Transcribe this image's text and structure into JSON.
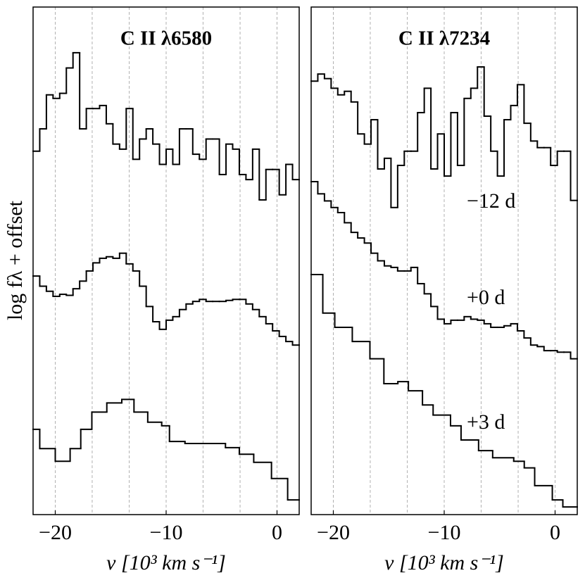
{
  "chart_data": [
    {
      "type": "step",
      "title": "C II λ6580",
      "xlabel": "v [10³ km s⁻¹]",
      "ylabel": "log fλ + offset",
      "xlim": [
        -22,
        2
      ],
      "ylim": [
        0,
        100
      ],
      "xticks": [
        {
          "value": -20,
          "label": "−20"
        },
        {
          "value": -10,
          "label": "−10"
        },
        0
      ],
      "xgrid": [
        -20,
        -16.67,
        -13.33,
        -10,
        -6.67,
        -3.33,
        0
      ],
      "series": [
        {
          "color": "#000000",
          "bins": [
            -22,
            -21.4,
            -20.8,
            -20.2,
            -19.6,
            -19,
            -18.4,
            -17.8,
            -17.2,
            -16.6,
            -16,
            -15.4,
            -14.8,
            -14.2,
            -13.6,
            -13,
            -12.4,
            -11.8,
            -11.2,
            -10.6,
            -10,
            -9.4,
            -8.8,
            -8.2,
            -7.6,
            -7,
            -6.4,
            -5.8,
            -5.2,
            -4.6,
            -4,
            -3.4,
            -2.8,
            -2.2,
            -1.6,
            -1,
            -0.4,
            0.2,
            0.8,
            1.4,
            2
          ],
          "values": [
            71.6,
            76,
            82.7,
            82,
            83,
            88,
            91,
            76,
            80,
            80,
            80.6,
            77,
            73,
            72,
            80,
            70,
            74,
            76,
            73,
            69,
            72,
            69,
            76,
            76,
            71,
            70,
            74,
            74,
            67,
            73,
            72,
            67,
            66,
            72,
            62,
            68,
            68,
            63,
            69,
            66
          ]
        },
        {
          "color": "#000000",
          "bins": [
            -22,
            -21.4,
            -20.8,
            -20.2,
            -19.6,
            -19,
            -18.4,
            -17.8,
            -17.2,
            -16.6,
            -16,
            -15.4,
            -14.8,
            -14.2,
            -13.6,
            -13,
            -12.4,
            -11.8,
            -11.2,
            -10.6,
            -10,
            -9.4,
            -8.8,
            -8.2,
            -7.6,
            -7,
            -6.4,
            -5.8,
            -5.2,
            -4.6,
            -4,
            -3.4,
            -2.8,
            -2.2,
            -1.6,
            -1,
            -0.4,
            0.2,
            0.8,
            1.4,
            2
          ],
          "values": [
            47,
            45,
            44,
            43,
            43.4,
            43.2,
            44.5,
            46,
            48,
            49.6,
            50.5,
            50.8,
            50.5,
            51.5,
            49.4,
            48,
            45,
            41,
            38,
            36.5,
            38.3,
            39,
            40.4,
            41.5,
            42,
            42.4,
            42,
            42,
            42,
            42.2,
            42.4,
            42.4,
            41.5,
            40.4,
            39,
            37.6,
            36.2,
            35.1,
            34.1,
            33.4
          ]
        },
        {
          "color": "#000000",
          "bins": [
            -22,
            -21.4,
            -20,
            -18.66,
            -17.7,
            -16.7,
            -15.35,
            -14,
            -12.9,
            -11.66,
            -10.4,
            -9.7,
            -8.3,
            -6.7,
            -4.65,
            -3.4,
            -2.1,
            -0.5,
            0.96,
            2
          ],
          "values": [
            16.8,
            13,
            10.5,
            13,
            16.8,
            20.2,
            22,
            22.7,
            20.2,
            18.2,
            17.5,
            14.4,
            14,
            14,
            13.2,
            11.9,
            10.3,
            7.1,
            2.9
          ]
        }
      ]
    },
    {
      "type": "step",
      "title": "C II λ7234",
      "xlabel": "v [10³ km s⁻¹]",
      "xlim": [
        -22,
        2
      ],
      "ylim": [
        0,
        100
      ],
      "xticks": [
        {
          "value": -20,
          "label": "−20"
        },
        {
          "value": -10,
          "label": "−10"
        },
        0
      ],
      "xgrid": [
        -20,
        -16.67,
        -13.33,
        -10,
        -6.67,
        -3.33,
        0
      ],
      "series": [
        {
          "name": "−12 d",
          "color": "#000000",
          "bins": [
            -22,
            -21.4,
            -20.8,
            -20.2,
            -19.6,
            -19,
            -18.4,
            -17.8,
            -17.2,
            -16.6,
            -16,
            -15.4,
            -14.8,
            -14.2,
            -13.6,
            -13,
            -12.4,
            -11.8,
            -11.2,
            -10.6,
            -10,
            -9.4,
            -8.8,
            -8.2,
            -7.6,
            -7,
            -6.4,
            -5.8,
            -5.2,
            -4.6,
            -4,
            -3.4,
            -2.8,
            -2.2,
            -1.6,
            -1,
            -0.4,
            0.2,
            0.8,
            1.4,
            2
          ],
          "values": [
            85.4,
            86.8,
            85.9,
            84,
            82.7,
            83.4,
            81.3,
            75,
            73,
            77.8,
            68.1,
            70.2,
            60.5,
            68.8,
            71.6,
            71.6,
            79.2,
            84,
            68.1,
            75,
            66.7,
            79.2,
            68.8,
            82,
            84,
            88.2,
            78.5,
            71.6,
            66.7,
            77.8,
            80.6,
            84.7,
            77.1,
            73.6,
            72.3,
            72.3,
            68.8,
            71.6,
            71.6,
            61.9
          ]
        },
        {
          "name": "+0 d",
          "color": "#000000",
          "bins": [
            -22,
            -21.4,
            -20.8,
            -20.2,
            -19.6,
            -19,
            -18.4,
            -17.8,
            -17.2,
            -16.6,
            -16,
            -15.4,
            -14.8,
            -14.2,
            -13.6,
            -13,
            -12.4,
            -11.8,
            -11.2,
            -10.6,
            -10,
            -9.4,
            -8.8,
            -8.2,
            -7.6,
            -7,
            -6.4,
            -5.8,
            -5.2,
            -4.6,
            -4,
            -3.4,
            -2.8,
            -2.2,
            -1.6,
            -1,
            -0.4,
            0.2,
            0.8,
            1.4,
            2
          ],
          "values": [
            65.6,
            63.2,
            61.8,
            60.5,
            59.5,
            57.5,
            55.6,
            54.5,
            53.5,
            51.5,
            50,
            49,
            48.7,
            48,
            48,
            48.7,
            45.5,
            43.5,
            41,
            38.5,
            37.6,
            38.3,
            38.3,
            39,
            38.5,
            38.3,
            37.6,
            36.9,
            36.9,
            37.2,
            37.6,
            36.2,
            34.8,
            33.4,
            33.1,
            32.3,
            32.3,
            32,
            32,
            30.7
          ]
        },
        {
          "name": "+3 d",
          "color": "#000000",
          "bins": [
            -22,
            -20.95,
            -19.87,
            -18.29,
            -16.7,
            -15.44,
            -14.18,
            -13.23,
            -11.96,
            -11,
            -9.43,
            -8.48,
            -6.9,
            -5.63,
            -3.73,
            -2.78,
            -1.84,
            -0.25,
            0.7,
            2
          ],
          "values": [
            47.3,
            39.7,
            36.9,
            34.1,
            30.7,
            25.8,
            26.2,
            24.4,
            21.6,
            19.6,
            17.5,
            14.7,
            12.6,
            11.2,
            10.5,
            9.2,
            5.7,
            2.9,
            1.5
          ]
        }
      ]
    }
  ]
}
